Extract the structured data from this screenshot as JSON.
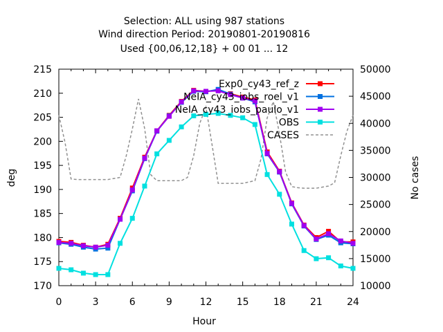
{
  "chart_data": {
    "type": "line",
    "title_lines": [
      "Selection: ALL using   987 stations",
      "Wind direction   Period: 20190801-20190816",
      "Used {00,06,12,18} + 00 01 ... 12"
    ],
    "xlabel": "Hour",
    "ylabel": "deg",
    "y2label": "No cases",
    "xlim": [
      0,
      24
    ],
    "ylim": [
      170,
      215
    ],
    "y2lim": [
      10000,
      50000
    ],
    "x_ticks": [
      "0",
      "3",
      "6",
      "9",
      "12",
      "15",
      "18",
      "21",
      "24"
    ],
    "y_ticks": [
      "170",
      "175",
      "180",
      "185",
      "190",
      "195",
      "200",
      "205",
      "210",
      "215"
    ],
    "y2_ticks": [
      "10000",
      "15000",
      "20000",
      "25000",
      "30000",
      "35000",
      "40000",
      "45000",
      "50000"
    ],
    "grid": false,
    "legend_position": "top-right",
    "x": [
      0,
      1,
      2,
      3,
      4,
      5,
      6,
      7,
      8,
      9,
      10,
      11,
      12,
      13,
      14,
      15,
      16,
      17,
      18,
      19,
      20,
      21,
      22,
      23,
      24
    ],
    "series": [
      {
        "name": "Exp0_cy43_ref_z",
        "color": "#ff0000",
        "marker": "square",
        "values": [
          179.2,
          179.0,
          178.4,
          178.0,
          178.6,
          184.0,
          190.3,
          196.7,
          202.2,
          205.4,
          208.3,
          210.6,
          210.4,
          210.6,
          209.9,
          209.2,
          208.6,
          197.8,
          193.8,
          187.2,
          182.6,
          180.0,
          181.3,
          179.1,
          179.1
        ]
      },
      {
        "name": "NeIA_cy43_iobs_roel_v1",
        "color": "#0070e0",
        "marker": "square",
        "values": [
          178.9,
          178.6,
          178.0,
          177.6,
          177.8,
          183.8,
          189.7,
          196.4,
          202.1,
          205.3,
          208.1,
          210.4,
          210.3,
          210.8,
          209.8,
          209.0,
          208.2,
          197.4,
          193.6,
          187.0,
          182.4,
          179.6,
          180.5,
          178.9,
          178.7
        ]
      },
      {
        "name": "NeIA_cy43_iobs_paulo_v1",
        "color": "#a000f0",
        "marker": "square",
        "values": [
          179.0,
          178.8,
          178.3,
          178.0,
          178.4,
          183.8,
          189.9,
          196.5,
          202.2,
          205.2,
          208.2,
          210.5,
          210.4,
          210.5,
          209.7,
          209.0,
          208.4,
          197.5,
          193.7,
          187.1,
          182.5,
          179.7,
          180.8,
          179.3,
          178.8
        ]
      },
      {
        "name": "OBS",
        "color": "#00e0e0",
        "marker": "square",
        "values": [
          173.6,
          173.3,
          172.6,
          172.3,
          172.3,
          178.8,
          184.0,
          190.7,
          197.4,
          200.2,
          203.0,
          205.3,
          205.6,
          205.8,
          205.4,
          204.9,
          203.5,
          193.1,
          189.0,
          182.8,
          177.3,
          175.6,
          175.8,
          174.1,
          173.6
        ]
      }
    ],
    "cases_series": {
      "name": "CASES",
      "color": "#909090",
      "axis": "y2",
      "x": [
        0,
        0.5,
        1,
        1.5,
        2,
        3,
        4,
        5,
        5.5,
        6,
        6.5,
        7,
        7.5,
        8,
        9,
        10,
        10.5,
        11,
        11.5,
        12,
        12.5,
        13,
        14,
        15,
        16,
        16.5,
        17,
        17.5,
        18,
        18.5,
        19,
        19.5,
        20,
        21,
        22,
        22.5,
        23,
        23.5,
        24
      ],
      "values": [
        41500,
        36500,
        29700,
        29600,
        29600,
        29600,
        29600,
        30000,
        34000,
        39000,
        44500,
        39000,
        30500,
        29400,
        29400,
        29400,
        30000,
        34000,
        40000,
        43000,
        36000,
        28900,
        28900,
        28900,
        29400,
        33500,
        41000,
        44000,
        38000,
        31000,
        28300,
        28100,
        28000,
        28000,
        28400,
        29000,
        34000,
        38500,
        41500
      ]
    }
  }
}
